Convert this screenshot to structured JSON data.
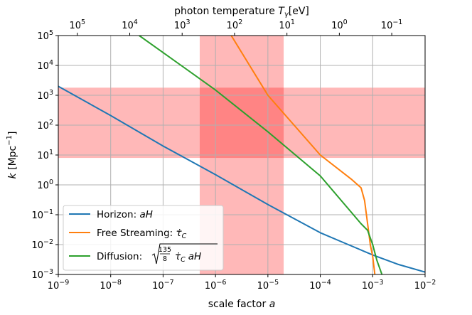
{
  "chart_data": {
    "type": "line",
    "title": "",
    "xlabel": "scale factor",
    "xlabel_var": "a",
    "ylabel": "k [Mpc",
    "ylabel_exp": "−1",
    "ylabel_end": "]",
    "top_xlabel": "photon temperature",
    "top_xlabel_var": "T",
    "top_xlabel_sub": "γ",
    "top_xlabel_unit": "[eV]",
    "xscale": "log",
    "yscale": "log",
    "xlim": [
      1e-09,
      0.01
    ],
    "ylim": [
      0.001,
      100000.0
    ],
    "grid": true,
    "x_ticks": [
      {
        "value": 1e-09,
        "base": "10",
        "exp": "−9"
      },
      {
        "value": 1e-08,
        "base": "10",
        "exp": "−8"
      },
      {
        "value": 1e-07,
        "base": "10",
        "exp": "−7"
      },
      {
        "value": 1e-06,
        "base": "10",
        "exp": "−6"
      },
      {
        "value": 1e-05,
        "base": "10",
        "exp": "−5"
      },
      {
        "value": 0.0001,
        "base": "10",
        "exp": "−4"
      },
      {
        "value": 0.001,
        "base": "10",
        "exp": "−3"
      },
      {
        "value": 0.01,
        "base": "10",
        "exp": "−2"
      }
    ],
    "y_ticks": [
      {
        "value": 0.001,
        "base": "10",
        "exp": "−3"
      },
      {
        "value": 0.01,
        "base": "10",
        "exp": "−2"
      },
      {
        "value": 0.1,
        "base": "10",
        "exp": "−1"
      },
      {
        "value": 1.0,
        "base": "10",
        "exp": "0"
      },
      {
        "value": 10.0,
        "base": "10",
        "exp": "1"
      },
      {
        "value": 100.0,
        "base": "10",
        "exp": "2"
      },
      {
        "value": 1000.0,
        "base": "10",
        "exp": "3"
      },
      {
        "value": 10000.0,
        "base": "10",
        "exp": "4"
      },
      {
        "value": 100000.0,
        "base": "10",
        "exp": "5"
      }
    ],
    "top_ticks": [
      {
        "a": 2.31e-09,
        "base": "10",
        "exp": "5"
      },
      {
        "a": 2.31e-08,
        "base": "10",
        "exp": "4"
      },
      {
        "a": 2.31e-07,
        "base": "10",
        "exp": "3"
      },
      {
        "a": 2.31e-06,
        "base": "10",
        "exp": "2"
      },
      {
        "a": 2.31e-05,
        "base": "10",
        "exp": "1"
      },
      {
        "a": 0.000231,
        "base": "10",
        "exp": "0"
      },
      {
        "a": 0.00231,
        "base": "10",
        "exp": "−1"
      }
    ],
    "shaded_regions": [
      {
        "orientation": "vertical",
        "range": [
          5e-07,
          2e-05
        ],
        "color": "#ff0000",
        "alpha": 0.28
      },
      {
        "orientation": "horizontal",
        "range": [
          8,
          1800
        ],
        "color": "#ff0000",
        "alpha": 0.28
      }
    ],
    "series": [
      {
        "name": "Horizon: ",
        "name_math": "aH",
        "color": "#1f77b4",
        "points": [
          [
            1e-09,
            2000
          ],
          [
            1e-08,
            210
          ],
          [
            1e-07,
            20
          ],
          [
            1e-06,
            2.2
          ],
          [
            1e-05,
            0.22
          ],
          [
            0.0001,
            0.025
          ],
          [
            0.0003,
            0.011
          ],
          [
            0.001,
            0.0045
          ],
          [
            0.003,
            0.0022
          ],
          [
            0.01,
            0.0012
          ]
        ]
      },
      {
        "name": "Free Streaming: ",
        "name_math": "τ̇",
        "name_math_sub": "C",
        "color": "#ff7f0e",
        "points": [
          [
            2e-06,
            100000
          ],
          [
            1e-05,
            1000
          ],
          [
            0.0001,
            10
          ],
          [
            0.0004,
            1.5
          ],
          [
            0.0006,
            0.8
          ],
          [
            0.0007,
            0.3
          ],
          [
            0.0008,
            0.05
          ],
          [
            0.0009,
            0.01
          ],
          [
            0.001,
            0.004
          ],
          [
            0.0011,
            0.001
          ]
        ]
      },
      {
        "name": "Diffusion: ",
        "name_math": "√(135/8 τ̇C aH)",
        "sqrt_num": "135",
        "sqrt_den": "8",
        "sqrt_dot": "τ̇",
        "sqrt_sub": "C",
        "sqrt_tail": "aH",
        "color": "#2ca02c",
        "points": [
          [
            3.5e-08,
            100000
          ],
          [
            1e-07,
            27000
          ],
          [
            1e-06,
            1500
          ],
          [
            1e-05,
            60
          ],
          [
            0.0001,
            2
          ],
          [
            0.0006,
            0.05
          ],
          [
            0.0008,
            0.03
          ],
          [
            0.001,
            0.01
          ],
          [
            0.0012,
            0.003
          ],
          [
            0.0015,
            0.001
          ]
        ]
      }
    ],
    "legend_position": "lower-left"
  }
}
